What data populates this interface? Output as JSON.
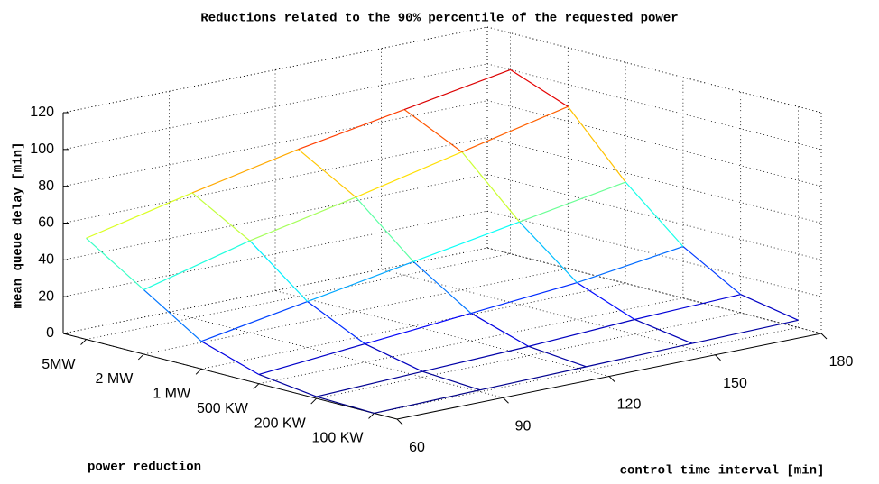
{
  "chart_data": {
    "type": "mesh",
    "title": "Reductions related to the 90% percentile of the requested power",
    "xlabel": "control time interval [min]",
    "ylabel": "power reduction",
    "zlabel": "mean queue delay [min]",
    "x": [
      60,
      90,
      120,
      150,
      180
    ],
    "xlim": [
      60,
      180
    ],
    "xticks": [
      60,
      90,
      120,
      150,
      180
    ],
    "categories": [
      "100 KW",
      "200 KW",
      "500 KW",
      "1 MW",
      "2 MW",
      "5MW"
    ],
    "z": [
      [
        0,
        1,
        2,
        3,
        4
      ],
      [
        1,
        3,
        5,
        8,
        10
      ],
      [
        5,
        10,
        15,
        20,
        28
      ],
      [
        15,
        25,
        35,
        45,
        55
      ],
      [
        35,
        50,
        62,
        75,
        88
      ],
      [
        55,
        68,
        80,
        90,
        100
      ]
    ],
    "zlim": [
      0,
      120
    ],
    "zticks": [
      0,
      20,
      40,
      60,
      80,
      100,
      120
    ],
    "colormap": "jet",
    "grid": true
  }
}
